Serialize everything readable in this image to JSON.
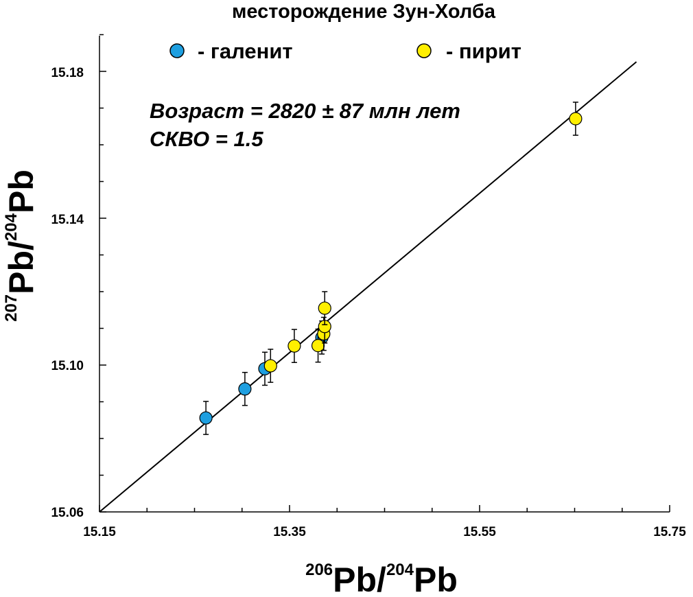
{
  "chart_data": {
    "type": "scatter",
    "title": "месторождение Зун-Холба",
    "xlabel": {
      "sup1": "206",
      "base1": "Pb/",
      "sup2": "204",
      "base2": "Pb"
    },
    "ylabel": {
      "sup1": "207",
      "base1": "Pb/",
      "sup2": "204",
      "base2": "Pb"
    },
    "xlim": [
      15.15,
      15.75
    ],
    "ylim": [
      15.06,
      15.19
    ],
    "x_ticks": [
      "15.15",
      "15.35",
      "15.55",
      "15.75"
    ],
    "y_ticks": [
      "15.06",
      "15.10",
      "15.14",
      "15.18"
    ],
    "grid": false,
    "legend_position": "top",
    "annotations": [
      "Возраст = 2820 ± 87 млн лет",
      "СКВО = 1.5"
    ],
    "isochron": {
      "x": [
        15.15,
        15.715
      ],
      "y": [
        15.06,
        15.1826
      ]
    },
    "series": [
      {
        "name": "- галенит",
        "color": "#1e9fe0",
        "points": [
          {
            "x": 15.262,
            "y": 15.0856,
            "err": 0.0045
          },
          {
            "x": 15.303,
            "y": 15.0935,
            "err": 0.0045
          },
          {
            "x": 15.324,
            "y": 15.099,
            "err": 0.0045
          },
          {
            "x": 15.384,
            "y": 15.1075,
            "err": 0.0045
          }
        ]
      },
      {
        "name": "- пирит",
        "color": "#ffef00",
        "points": [
          {
            "x": 15.33,
            "y": 15.0998,
            "err": 0.0045
          },
          {
            "x": 15.355,
            "y": 15.1052,
            "err": 0.0045
          },
          {
            "x": 15.38,
            "y": 15.1053,
            "err": 0.0045
          },
          {
            "x": 15.386,
            "y": 15.1085,
            "err": 0.0045
          },
          {
            "x": 15.387,
            "y": 15.1105,
            "err": 0.0045
          },
          {
            "x": 15.387,
            "y": 15.1155,
            "err": 0.0045
          },
          {
            "x": 15.651,
            "y": 15.1671,
            "err": 0.0045
          }
        ]
      }
    ]
  }
}
